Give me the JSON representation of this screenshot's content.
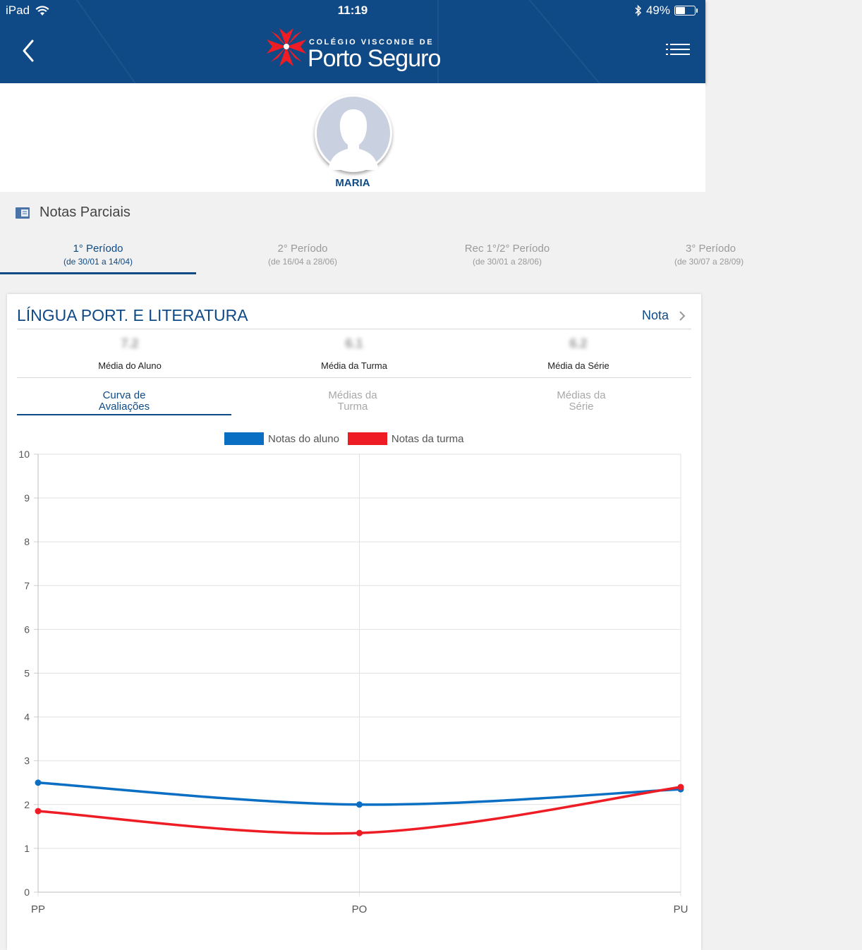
{
  "status_bar": {
    "device": "iPad",
    "time": "11:19",
    "battery": "49%",
    "battery_level": 0.49
  },
  "header": {
    "logo_line1": "COLÉGIO VISCONDE DE",
    "logo_line2": "Porto Seguro"
  },
  "profile": {
    "name": "MARIA"
  },
  "section": {
    "title": "Notas Parciais"
  },
  "periods": [
    {
      "label": "1° Período",
      "dates": "(de 30/01 a 14/04)"
    },
    {
      "label": "2° Período",
      "dates": "(de 16/04 a 28/06)"
    },
    {
      "label": "Rec 1°/2° Período",
      "dates": "(de 30/01 a 28/06)"
    },
    {
      "label": "3° Período",
      "dates": "(de 30/07 a 28/09)"
    }
  ],
  "card": {
    "subject": "LÍNGUA PORT. E LITERATURA",
    "nota_label": "Nota",
    "stats": [
      {
        "value": "7.2",
        "label": "Média do Aluno"
      },
      {
        "value": "6.1",
        "label": "Média da Turma"
      },
      {
        "value": "6.2",
        "label": "Média da Série"
      }
    ],
    "chart_tabs": [
      {
        "line1": "Curva de",
        "line2": "Avaliações"
      },
      {
        "line1": "Médias da",
        "line2": "Turma"
      },
      {
        "line1": "Médias da",
        "line2": "Série"
      }
    ]
  },
  "colors": {
    "primary": "#0f4a86",
    "series_student": "#0a6fc2",
    "series_class": "#ee1d25"
  },
  "chart_data": {
    "type": "line",
    "categories": [
      "PP",
      "PO",
      "PU"
    ],
    "series": [
      {
        "name": "Notas do aluno",
        "values": [
          2.5,
          2.0,
          2.35
        ]
      },
      {
        "name": "Notas da turma",
        "values": [
          1.85,
          1.35,
          2.4
        ]
      }
    ],
    "y_ticks": [
      "0",
      "1",
      "2",
      "3",
      "4",
      "5",
      "6",
      "7",
      "8",
      "9",
      "10"
    ],
    "ylim": [
      0,
      10
    ],
    "legend_position": "top-center",
    "grid": true
  }
}
